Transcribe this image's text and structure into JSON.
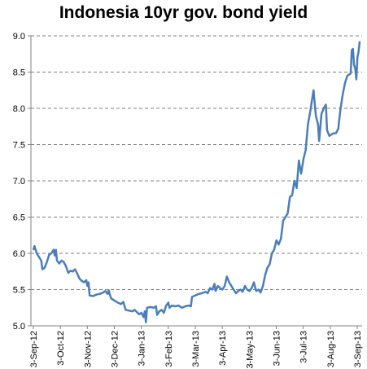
{
  "chart_data": {
    "type": "line",
    "title": "Indonesia 10yr gov. bond yield",
    "xlabel": "",
    "ylabel": "",
    "ylim": [
      5.0,
      9.0
    ],
    "yticks": [
      "5.0",
      "5.5",
      "6.0",
      "6.5",
      "7.0",
      "7.5",
      "8.0",
      "8.5",
      "9.0"
    ],
    "xticks": [
      "3-Sep-12",
      "3-Oct-12",
      "3-Nov-12",
      "3-Dec-12",
      "3-Jan-13",
      "3-Feb-13",
      "3-Mar-13",
      "3-Apr-13",
      "3-May-13",
      "3-Jun-13",
      "3-Jul-13",
      "3-Aug-13",
      "3-Sep-13"
    ],
    "grid": true,
    "line_color": "#4a7ebb",
    "series": [
      {
        "values": [
          [
            0,
            6.05
          ],
          [
            1,
            6.1
          ],
          [
            3,
            6.0
          ],
          [
            5,
            5.95
          ],
          [
            7,
            5.9
          ],
          [
            8,
            5.78
          ],
          [
            10,
            5.8
          ],
          [
            12,
            5.88
          ],
          [
            14,
            5.98
          ],
          [
            16,
            6.0
          ],
          [
            18,
            6.05
          ],
          [
            19,
            5.97
          ],
          [
            20,
            6.05
          ],
          [
            21,
            5.9
          ],
          [
            23,
            5.86
          ],
          [
            25,
            5.9
          ],
          [
            27,
            5.88
          ],
          [
            29,
            5.82
          ],
          [
            31,
            5.73
          ],
          [
            33,
            5.76
          ],
          [
            35,
            5.75
          ],
          [
            37,
            5.78
          ],
          [
            39,
            5.72
          ],
          [
            41,
            5.65
          ],
          [
            43,
            5.62
          ],
          [
            45,
            5.6
          ],
          [
            47,
            5.63
          ],
          [
            48,
            5.55
          ],
          [
            49,
            5.6
          ],
          [
            50,
            5.42
          ],
          [
            53,
            5.41
          ],
          [
            56,
            5.43
          ],
          [
            59,
            5.44
          ],
          [
            62,
            5.46
          ],
          [
            64,
            5.48
          ],
          [
            66,
            5.44
          ],
          [
            67,
            5.49
          ],
          [
            69,
            5.38
          ],
          [
            72,
            5.35
          ],
          [
            75,
            5.32
          ],
          [
            78,
            5.3
          ],
          [
            80,
            5.33
          ],
          [
            82,
            5.22
          ],
          [
            85,
            5.21
          ],
          [
            88,
            5.2
          ],
          [
            90,
            5.22
          ],
          [
            92,
            5.19
          ],
          [
            94,
            5.16
          ],
          [
            96,
            5.18
          ],
          [
            98,
            5.12
          ],
          [
            99,
            5.2
          ],
          [
            100,
            5.05
          ],
          [
            101,
            5.25
          ],
          [
            104,
            5.26
          ],
          [
            107,
            5.25
          ],
          [
            109,
            5.27
          ],
          [
            110,
            5.15
          ],
          [
            112,
            5.2
          ],
          [
            114,
            5.22
          ],
          [
            116,
            5.18
          ],
          [
            118,
            5.28
          ],
          [
            120,
            5.32
          ],
          [
            121,
            5.25
          ],
          [
            123,
            5.28
          ],
          [
            126,
            5.27
          ],
          [
            129,
            5.28
          ],
          [
            132,
            5.25
          ],
          [
            135,
            5.27
          ],
          [
            138,
            5.28
          ],
          [
            140,
            5.27
          ],
          [
            141,
            5.4
          ],
          [
            144,
            5.42
          ],
          [
            147,
            5.44
          ],
          [
            150,
            5.45
          ],
          [
            153,
            5.47
          ],
          [
            155,
            5.45
          ],
          [
            157,
            5.52
          ],
          [
            159,
            5.5
          ],
          [
            161,
            5.58
          ],
          [
            162,
            5.48
          ],
          [
            164,
            5.55
          ],
          [
            166,
            5.52
          ],
          [
            168,
            5.5
          ],
          [
            170,
            5.55
          ],
          [
            172,
            5.68
          ],
          [
            174,
            5.6
          ],
          [
            176,
            5.55
          ],
          [
            178,
            5.5
          ],
          [
            180,
            5.45
          ],
          [
            182,
            5.48
          ],
          [
            184,
            5.5
          ],
          [
            186,
            5.47
          ],
          [
            188,
            5.55
          ],
          [
            190,
            5.5
          ],
          [
            192,
            5.48
          ],
          [
            194,
            5.52
          ],
          [
            196,
            5.6
          ],
          [
            198,
            5.48
          ],
          [
            200,
            5.5
          ],
          [
            202,
            5.46
          ],
          [
            204,
            5.55
          ],
          [
            206,
            5.7
          ],
          [
            208,
            5.8
          ],
          [
            210,
            5.85
          ],
          [
            212,
            6.0
          ],
          [
            214,
            6.05
          ],
          [
            216,
            6.18
          ],
          [
            218,
            6.12
          ],
          [
            220,
            6.2
          ],
          [
            222,
            6.45
          ],
          [
            224,
            6.5
          ],
          [
            226,
            6.55
          ],
          [
            228,
            6.78
          ],
          [
            230,
            6.8
          ],
          [
            232,
            7.0
          ],
          [
            234,
            6.9
          ],
          [
            236,
            7.28
          ],
          [
            238,
            7.1
          ],
          [
            240,
            7.3
          ],
          [
            242,
            7.42
          ],
          [
            244,
            7.78
          ],
          [
            246,
            7.95
          ],
          [
            248,
            8.15
          ],
          [
            249,
            8.25
          ],
          [
            251,
            7.9
          ],
          [
            253,
            7.78
          ],
          [
            254,
            7.55
          ],
          [
            256,
            7.92
          ],
          [
            258,
            8.0
          ],
          [
            260,
            8.05
          ],
          [
            261,
            7.7
          ],
          [
            263,
            7.62
          ],
          [
            266,
            7.65
          ],
          [
            269,
            7.66
          ],
          [
            271,
            7.72
          ],
          [
            273,
            8.0
          ],
          [
            275,
            8.2
          ],
          [
            277,
            8.35
          ],
          [
            279,
            8.45
          ],
          [
            282,
            8.48
          ],
          [
            283,
            8.8
          ],
          [
            284,
            8.82
          ],
          [
            285,
            8.6
          ],
          [
            286,
            8.55
          ],
          [
            287,
            8.4
          ],
          [
            288,
            8.7
          ],
          [
            289,
            8.78
          ],
          [
            290,
            8.92
          ]
        ]
      }
    ]
  }
}
